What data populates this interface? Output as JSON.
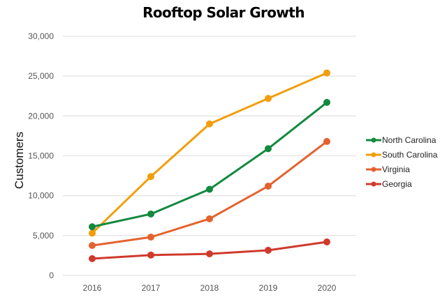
{
  "chart_data": {
    "type": "line",
    "title": "Rooftop Solar Growth",
    "xlabel": "",
    "ylabel": "Customers",
    "ylim": [
      0,
      30000
    ],
    "yticks": [
      0,
      5000,
      10000,
      15000,
      20000,
      25000,
      30000
    ],
    "ytick_labels": [
      "0",
      "5,000",
      "10,000",
      "15,000",
      "20,000",
      "25,000",
      "30,000"
    ],
    "grid": true,
    "legend_position": "right",
    "x": [
      "2016",
      "2017",
      "2018",
      "2019",
      "2020"
    ],
    "series": [
      {
        "name": "North Carolina",
        "color": "#12893f",
        "values": [
          6100,
          7700,
          10800,
          15900,
          21700
        ]
      },
      {
        "name": "South Carolina",
        "color": "#f29e0b",
        "values": [
          5300,
          12400,
          19000,
          22200,
          25400
        ]
      },
      {
        "name": "Virginia",
        "color": "#e4622e",
        "values": [
          3750,
          4800,
          7100,
          11200,
          16800
        ]
      },
      {
        "name": "Georgia",
        "color": "#cf3a2c",
        "values": [
          2100,
          2550,
          2700,
          3150,
          4200
        ]
      }
    ]
  }
}
